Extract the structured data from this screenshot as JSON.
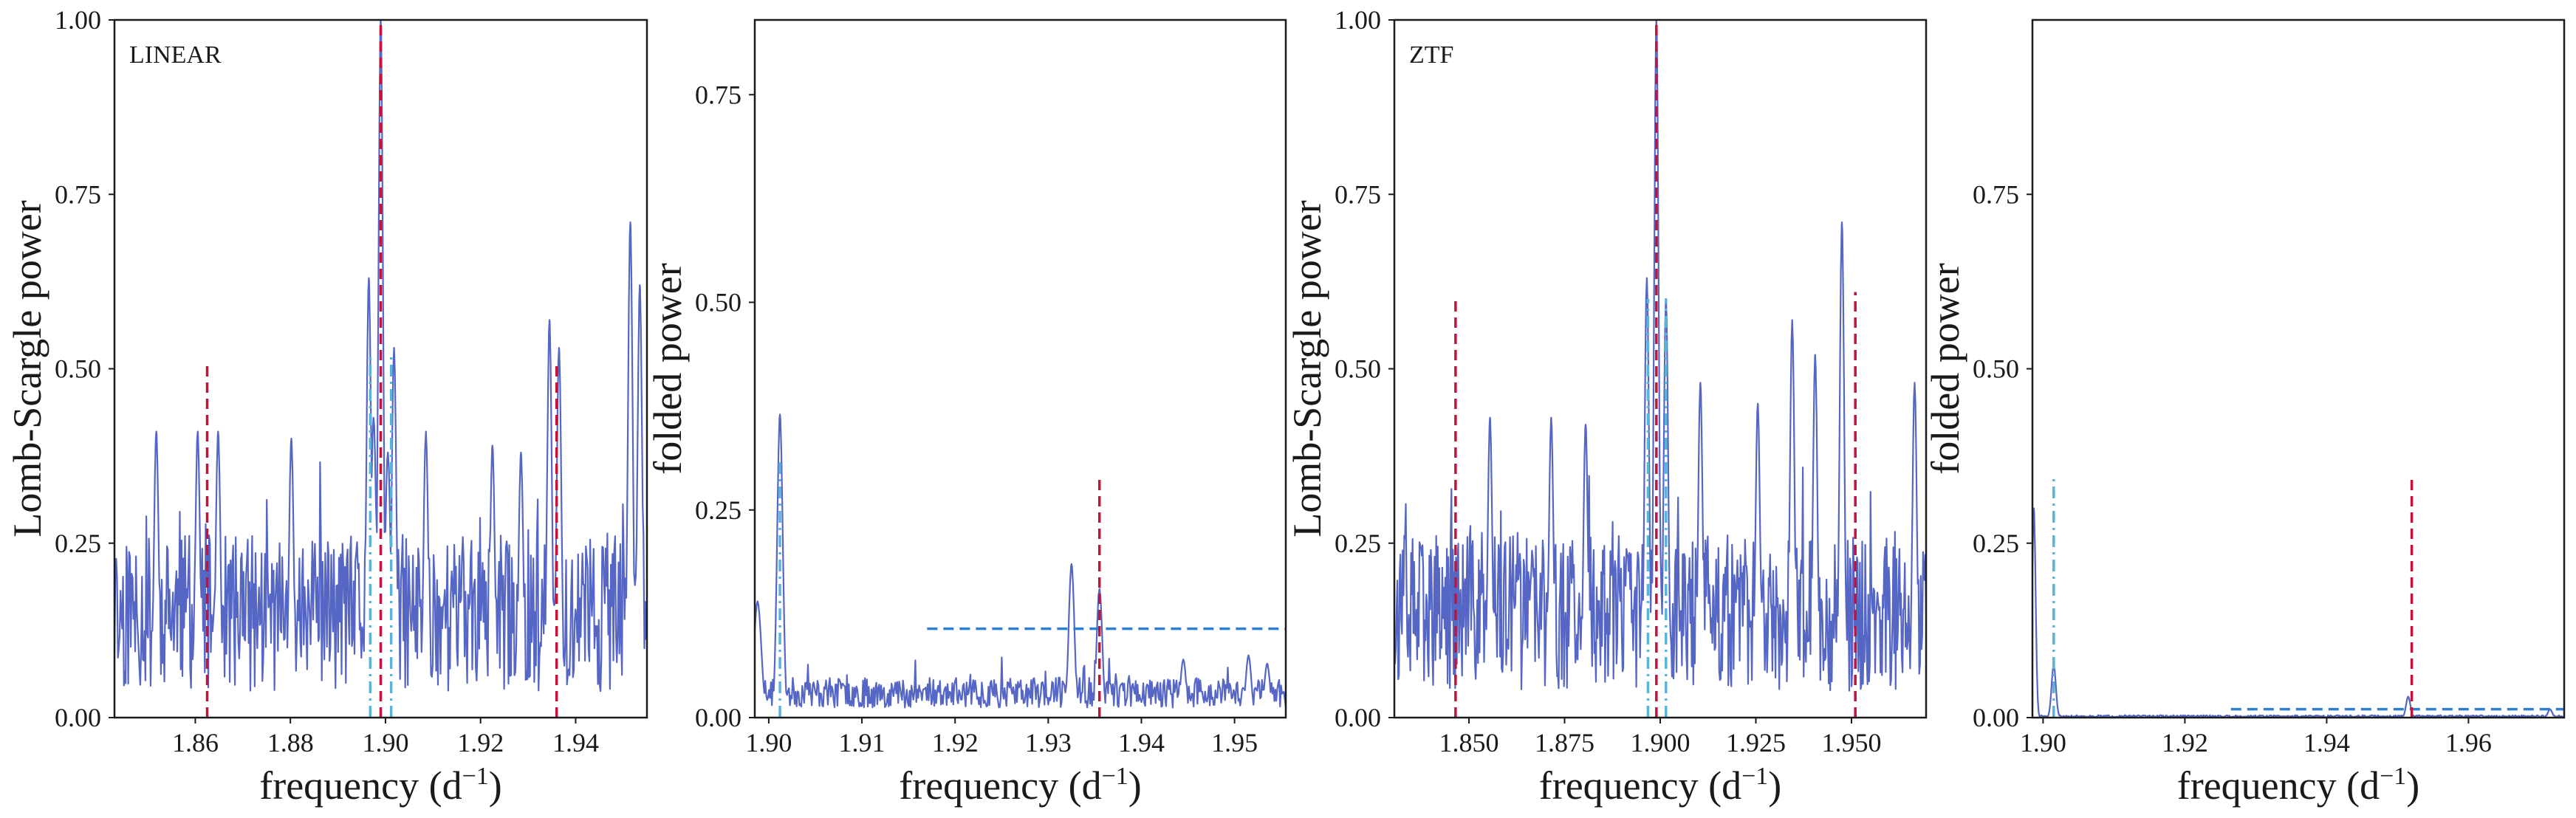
{
  "colors": {
    "periodogram": "#5566c4",
    "alias_red": "#c0143c",
    "alt_cyan": "#5ab4d8",
    "threshold_blue": "#2f7fd0",
    "frame": "#1a1a1a",
    "background": "#ffffff"
  },
  "chart_data": [
    {
      "type": "line",
      "panel_label": "LINEAR",
      "xlabel": "frequency (d",
      "xlabel_sup": "−1",
      "xlabel_tail": ")",
      "ylabel": "Lomb-Scargle power",
      "xlim": [
        1.843,
        1.955
      ],
      "ylim": [
        0.0,
        1.0
      ],
      "xticks": [
        1.86,
        1.88,
        1.9,
        1.92,
        1.94
      ],
      "xtick_labels": [
        "1.86",
        "1.88",
        "1.90",
        "1.92",
        "1.94"
      ],
      "yticks": [
        0.0,
        0.25,
        0.5,
        0.75,
        1.0
      ],
      "ytick_labels": [
        "0.00",
        "0.25",
        "0.50",
        "0.75",
        "1.00"
      ],
      "series": [
        {
          "style": "noise",
          "baseline": 0.15,
          "spread": 0.07,
          "n": 620,
          "seed": 11,
          "peaks": [
            {
              "x": 1.8965,
              "y": 0.63,
              "w": 0.0005
            },
            {
              "x": 1.8975,
              "y": 0.43,
              "w": 0.0006
            },
            {
              "x": 1.899,
              "y": 1.0,
              "w": 0.0005
            },
            {
              "x": 1.9005,
              "y": 0.38,
              "w": 0.0006
            },
            {
              "x": 1.9018,
              "y": 0.53,
              "w": 0.0005
            },
            {
              "x": 1.9345,
              "y": 0.57,
              "w": 0.0005
            },
            {
              "x": 1.9365,
              "y": 0.53,
              "w": 0.0005
            },
            {
              "x": 1.9515,
              "y": 0.71,
              "w": 0.0005
            },
            {
              "x": 1.9535,
              "y": 0.62,
              "w": 0.0005
            },
            {
              "x": 1.8518,
              "y": 0.41,
              "w": 0.0005
            },
            {
              "x": 1.8648,
              "y": 0.41,
              "w": 0.0005
            },
            {
              "x": 1.8605,
              "y": 0.41,
              "w": 0.0005
            },
            {
              "x": 1.8802,
              "y": 0.4,
              "w": 0.0005
            },
            {
              "x": 1.9085,
              "y": 0.41,
              "w": 0.0005
            },
            {
              "x": 1.9225,
              "y": 0.39,
              "w": 0.0005
            },
            {
              "x": 1.9285,
              "y": 0.38,
              "w": 0.0005
            }
          ]
        }
      ],
      "vlines": [
        {
          "x": 1.8625,
          "y0": 0.0,
          "y1": 0.51,
          "color": "alias_red",
          "dash": "dashed"
        },
        {
          "x": 1.899,
          "y0": 0.0,
          "y1": 1.0,
          "color": "alias_red",
          "dash": "dashed"
        },
        {
          "x": 1.936,
          "y0": 0.0,
          "y1": 0.51,
          "color": "alias_red",
          "dash": "dashed"
        },
        {
          "x": 1.8968,
          "y0": 0.0,
          "y1": 0.52,
          "color": "alt_cyan",
          "dash": "dashdot"
        },
        {
          "x": 1.9012,
          "y0": 0.0,
          "y1": 0.52,
          "color": "alt_cyan",
          "dash": "dashdot"
        }
      ],
      "hlines": []
    },
    {
      "type": "line",
      "panel_label": "",
      "xlabel": "frequency (d",
      "xlabel_sup": "−1",
      "xlabel_tail": ")",
      "ylabel": "folded power",
      "xlim": [
        1.8985,
        1.9555
      ],
      "ylim": [
        0.0,
        0.84
      ],
      "xticks": [
        1.9,
        1.91,
        1.92,
        1.93,
        1.94,
        1.95
      ],
      "xtick_labels": [
        "1.90",
        "1.91",
        "1.92",
        "1.93",
        "1.94",
        "1.95"
      ],
      "yticks": [
        0.0,
        0.25,
        0.5,
        0.75
      ],
      "ytick_labels": [
        "0.00",
        "0.25",
        "0.50",
        "0.75"
      ],
      "series": [
        {
          "style": "floor",
          "baseline": 0.03,
          "spread": 0.018,
          "n": 560,
          "seed": 23,
          "peaks": [
            {
              "x": 1.8988,
              "y": 0.14,
              "w": 0.0004
            },
            {
              "x": 1.9012,
              "y": 0.365,
              "w": 0.0003
            },
            {
              "x": 1.9325,
              "y": 0.185,
              "w": 0.0003
            },
            {
              "x": 1.9355,
              "y": 0.155,
              "w": 0.0003
            },
            {
              "x": 1.9445,
              "y": 0.07,
              "w": 0.0003
            },
            {
              "x": 1.9515,
              "y": 0.075,
              "w": 0.0003
            },
            {
              "x": 1.9535,
              "y": 0.065,
              "w": 0.0003
            }
          ]
        }
      ],
      "vlines": [
        {
          "x": 1.9355,
          "y0": 0.0,
          "y1": 0.29,
          "color": "alias_red",
          "dash": "dashed"
        },
        {
          "x": 1.9012,
          "y0": 0.0,
          "y1": 0.31,
          "color": "alt_cyan",
          "dash": "dashdot"
        }
      ],
      "hlines": [
        {
          "y": 0.107,
          "x0": 1.917,
          "x1": 1.9555,
          "color": "threshold_blue",
          "dash": "dashed"
        }
      ]
    },
    {
      "type": "line",
      "panel_label": "ZTF",
      "xlabel": "frequency (d",
      "xlabel_sup": "−1",
      "xlabel_tail": ")",
      "ylabel": "Lomb-Scargle power",
      "xlim": [
        1.8305,
        1.9695
      ],
      "ylim": [
        0.0,
        1.0
      ],
      "xticks": [
        1.85,
        1.875,
        1.9,
        1.925,
        1.95
      ],
      "xtick_labels": [
        "1.850",
        "1.875",
        "1.900",
        "1.925",
        "1.950"
      ],
      "yticks": [
        0.0,
        0.25,
        0.5,
        0.75,
        1.0
      ],
      "ytick_labels": [
        "0.00",
        "0.25",
        "0.50",
        "0.75",
        "1.00"
      ],
      "series": [
        {
          "style": "noise",
          "baseline": 0.15,
          "spread": 0.07,
          "n": 700,
          "seed": 37,
          "peaks": [
            {
              "x": 1.8965,
              "y": 0.63,
              "w": 0.0006
            },
            {
              "x": 1.899,
              "y": 1.0,
              "w": 0.0006
            },
            {
              "x": 1.9015,
              "y": 0.6,
              "w": 0.0006
            },
            {
              "x": 1.9475,
              "y": 0.71,
              "w": 0.0006
            },
            {
              "x": 1.9345,
              "y": 0.57,
              "w": 0.0006
            },
            {
              "x": 1.9405,
              "y": 0.52,
              "w": 0.0006
            },
            {
              "x": 1.9665,
              "y": 0.48,
              "w": 0.0006
            },
            {
              "x": 1.9255,
              "y": 0.45,
              "w": 0.0006
            },
            {
              "x": 1.8555,
              "y": 0.43,
              "w": 0.0006
            },
            {
              "x": 1.8715,
              "y": 0.43,
              "w": 0.0006
            },
            {
              "x": 1.9105,
              "y": 0.48,
              "w": 0.0006
            },
            {
              "x": 1.8805,
              "y": 0.42,
              "w": 0.0006
            }
          ]
        }
      ],
      "vlines": [
        {
          "x": 1.8465,
          "y0": 0.0,
          "y1": 0.6,
          "color": "alias_red",
          "dash": "dashed"
        },
        {
          "x": 1.899,
          "y0": 0.0,
          "y1": 1.0,
          "color": "alias_red",
          "dash": "dashed"
        },
        {
          "x": 1.951,
          "y0": 0.0,
          "y1": 0.61,
          "color": "alias_red",
          "dash": "dashed"
        },
        {
          "x": 1.8968,
          "y0": 0.0,
          "y1": 0.6,
          "color": "alt_cyan",
          "dash": "dashdot"
        },
        {
          "x": 1.9015,
          "y0": 0.0,
          "y1": 0.6,
          "color": "alt_cyan",
          "dash": "dashdot"
        }
      ],
      "hlines": []
    },
    {
      "type": "line",
      "panel_label": "",
      "xlabel": "frequency (d",
      "xlabel_sup": "−1",
      "xlabel_tail": ")",
      "ylabel": "folded power",
      "xlim": [
        1.8985,
        1.9735
      ],
      "ylim": [
        0.0,
        1.0
      ],
      "xticks": [
        1.9,
        1.92,
        1.94,
        1.96
      ],
      "xtick_labels": [
        "1.90",
        "1.92",
        "1.94",
        "1.96"
      ],
      "yticks": [
        0.0,
        0.25,
        0.5,
        0.75
      ],
      "ytick_labels": [
        "0.00",
        "0.25",
        "0.50",
        "0.75"
      ],
      "series": [
        {
          "style": "flat",
          "baseline": 0.002,
          "spread": 0.0015,
          "n": 600,
          "seed": 51,
          "peaks": [
            {
              "x": 1.8987,
              "y": 0.3,
              "w": 0.00025
            },
            {
              "x": 1.9015,
              "y": 0.075,
              "w": 0.0003
            },
            {
              "x": 1.9515,
              "y": 0.03,
              "w": 0.0003
            },
            {
              "x": 1.9715,
              "y": 0.012,
              "w": 0.0003
            }
          ]
        }
      ],
      "vlines": [
        {
          "x": 1.952,
          "y0": 0.0,
          "y1": 0.345,
          "color": "alias_red",
          "dash": "dashed"
        },
        {
          "x": 1.9015,
          "y0": 0.0,
          "y1": 0.345,
          "color": "alt_cyan",
          "dash": "dashdot"
        }
      ],
      "hlines": [
        {
          "y": 0.012,
          "x0": 1.9265,
          "x1": 1.9735,
          "color": "threshold_blue",
          "dash": "dashed"
        }
      ]
    }
  ]
}
